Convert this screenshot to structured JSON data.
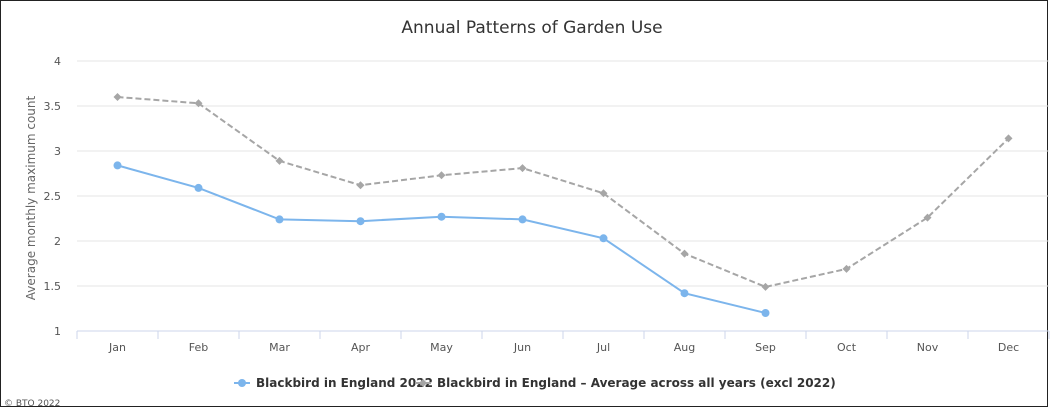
{
  "chart_data": {
    "type": "line",
    "title": "Annual Patterns of Garden Use",
    "xlabel": "",
    "ylabel": "Average monthly maximum count",
    "categories": [
      "Jan",
      "Feb",
      "Mar",
      "Apr",
      "May",
      "Jun",
      "Jul",
      "Aug",
      "Sep",
      "Oct",
      "Nov",
      "Dec"
    ],
    "ylim": [
      1,
      4
    ],
    "yticks": [
      "1",
      "1.5",
      "2",
      "2.5",
      "3",
      "3.5",
      "4"
    ],
    "grid": true,
    "legend_position": "bottom",
    "series": [
      {
        "name": "Blackbird in England 2022",
        "color": "#7cb5ec",
        "style": "solid",
        "marker": "circle",
        "values": [
          2.84,
          2.59,
          2.24,
          2.22,
          2.27,
          2.24,
          2.03,
          1.42,
          1.2,
          null,
          null,
          null
        ]
      },
      {
        "name": "Blackbird in England – Average across all years (excl 2022)",
        "color": "#a6a6a6",
        "style": "dashed",
        "marker": "diamond",
        "values": [
          3.6,
          3.53,
          2.89,
          2.62,
          2.73,
          2.81,
          2.53,
          1.86,
          1.49,
          1.69,
          2.26,
          3.14
        ]
      }
    ],
    "credit": "© BTO 2022"
  }
}
